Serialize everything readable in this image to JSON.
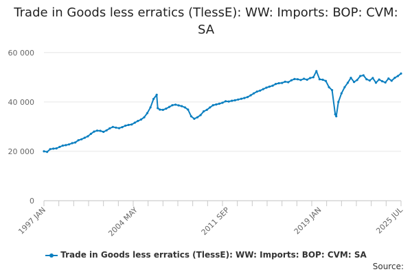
{
  "chart_data": {
    "type": "line",
    "title": "Trade in Goods less erratics (TlessE): WW: Imports: BOP: CVM: SA",
    "xlabel": "",
    "ylabel": "",
    "x_ticks": [
      "1997 JAN",
      "2004 MAY",
      "2011 SEP",
      "2019 JAN",
      "2025 JUL"
    ],
    "y_ticks": [
      0,
      20000,
      40000,
      60000
    ],
    "y_tick_labels": [
      "0",
      "20 000",
      "40 000",
      "60 000"
    ],
    "ylim": [
      0,
      63000
    ],
    "x_range": [
      "1997-01",
      "2025-07"
    ],
    "grid": true,
    "legend_position": "bottom",
    "color": "#0b7fc0",
    "series": [
      {
        "name": "Trade in Goods less erratics (TlessE): WW: Imports: BOP: CVM: SA",
        "x": [
          "1997-01",
          "1997-04",
          "1997-07",
          "1997-10",
          "1998-01",
          "1998-04",
          "1998-07",
          "1998-10",
          "1999-01",
          "1999-04",
          "1999-07",
          "1999-10",
          "2000-01",
          "2000-04",
          "2000-07",
          "2000-10",
          "2001-01",
          "2001-04",
          "2001-07",
          "2001-10",
          "2002-01",
          "2002-04",
          "2002-07",
          "2002-10",
          "2003-01",
          "2003-04",
          "2003-07",
          "2003-10",
          "2004-01",
          "2004-04",
          "2004-07",
          "2004-10",
          "2005-01",
          "2005-04",
          "2005-07",
          "2005-10",
          "2006-01",
          "2006-02",
          "2006-04",
          "2006-07",
          "2006-10",
          "2007-01",
          "2007-04",
          "2007-07",
          "2007-10",
          "2008-01",
          "2008-04",
          "2008-07",
          "2008-10",
          "2009-01",
          "2009-04",
          "2009-07",
          "2009-10",
          "2010-01",
          "2010-04",
          "2010-07",
          "2010-10",
          "2011-01",
          "2011-04",
          "2011-07",
          "2011-10",
          "2012-01",
          "2012-04",
          "2012-07",
          "2012-10",
          "2013-01",
          "2013-04",
          "2013-07",
          "2013-10",
          "2014-01",
          "2014-04",
          "2014-07",
          "2014-10",
          "2015-01",
          "2015-04",
          "2015-07",
          "2015-10",
          "2016-01",
          "2016-04",
          "2016-07",
          "2016-10",
          "2017-01",
          "2017-04",
          "2017-07",
          "2017-10",
          "2018-01",
          "2018-04",
          "2018-07",
          "2018-10",
          "2019-01",
          "2019-04",
          "2019-07",
          "2019-10",
          "2020-01",
          "2020-04",
          "2020-05",
          "2020-07",
          "2020-10",
          "2021-01",
          "2021-04",
          "2021-07",
          "2021-10",
          "2022-01",
          "2022-04",
          "2022-07",
          "2022-10",
          "2023-01",
          "2023-04",
          "2023-07",
          "2023-10",
          "2024-01",
          "2024-04",
          "2024-07",
          "2024-10",
          "2025-01",
          "2025-04",
          "2025-07"
        ],
        "values": [
          20000,
          19800,
          20900,
          21100,
          21200,
          21800,
          22300,
          22500,
          22800,
          23300,
          23600,
          24500,
          24900,
          25500,
          26100,
          27100,
          28000,
          28400,
          28300,
          27900,
          28500,
          29300,
          29900,
          29600,
          29400,
          29800,
          30400,
          30700,
          30900,
          31600,
          32300,
          32900,
          33800,
          35500,
          37800,
          41200,
          42900,
          37500,
          36900,
          36800,
          37300,
          38000,
          38700,
          38900,
          38600,
          38300,
          37800,
          36900,
          34200,
          33200,
          33800,
          34700,
          36200,
          36800,
          37800,
          38700,
          39000,
          39300,
          39700,
          40300,
          40200,
          40500,
          40700,
          41000,
          41300,
          41600,
          42000,
          42700,
          43500,
          44200,
          44600,
          45200,
          45800,
          46200,
          46600,
          47300,
          47600,
          47700,
          48200,
          48000,
          48800,
          49300,
          49200,
          48900,
          49400,
          49000,
          49700,
          50000,
          52500,
          49200,
          49000,
          48500,
          46000,
          44800,
          35000,
          34200,
          40000,
          43500,
          46000,
          47800,
          49800,
          48100,
          48900,
          50500,
          50800,
          49200,
          48700,
          49700,
          47800,
          49100,
          48400,
          47900,
          49500,
          48600,
          49800,
          50500,
          51500
        ]
      }
    ]
  },
  "source_label": "Source:"
}
